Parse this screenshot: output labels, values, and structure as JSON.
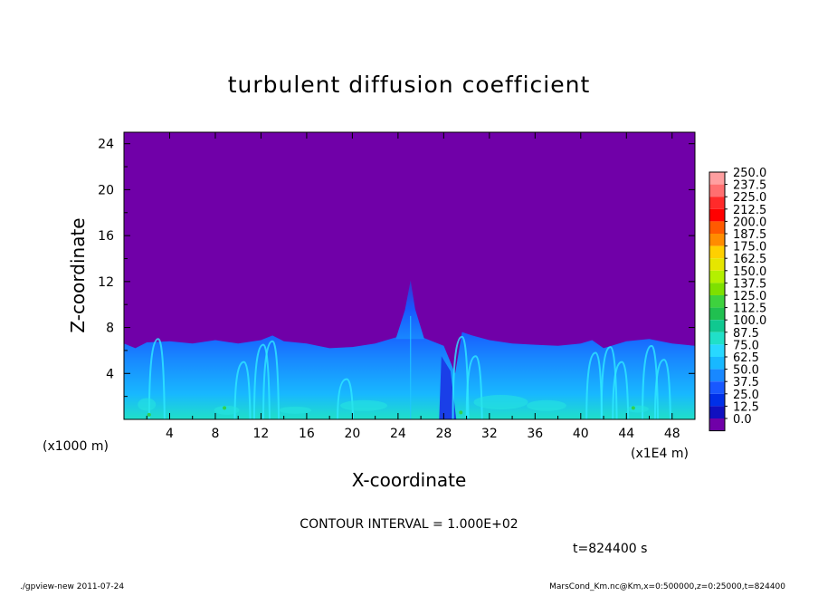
{
  "chart_data": {
    "type": "heatmap",
    "title": "turbulent diffusion coefficient",
    "xlabel": "X-coordinate",
    "ylabel": "Z-coordinate",
    "x_unit_left": "(x1000 m)",
    "x_unit_right": "(x1E4 m)",
    "xlim": [
      0,
      50
    ],
    "ylim": [
      0,
      25
    ],
    "x_ticks": [
      4,
      8,
      12,
      16,
      20,
      24,
      28,
      32,
      36,
      40,
      44,
      48
    ],
    "y_ticks": [
      4,
      8,
      12,
      16,
      20,
      24
    ],
    "colorbar_levels": [
      "250.0",
      "237.5",
      "225.0",
      "212.5",
      "200.0",
      "187.5",
      "175.0",
      "162.5",
      "150.0",
      "137.5",
      "125.0",
      "112.5",
      "100.0",
      "87.5",
      "75.0",
      "62.5",
      "50.0",
      "37.5",
      "25.0",
      "12.5",
      "0.0"
    ],
    "colorbar_colors": [
      "#ff9fa0",
      "#ff6f70",
      "#ff2a2a",
      "#ff0000",
      "#ff5a00",
      "#ff8c00",
      "#ffd000",
      "#e6e600",
      "#b4f000",
      "#7ee000",
      "#3ed23e",
      "#20c050",
      "#10c890",
      "#20e0c8",
      "#28d8ff",
      "#18b8ff",
      "#1888ff",
      "#1858ff",
      "#0030e8",
      "#1010c0",
      "#7000a8"
    ],
    "annotation": "CONTOUR INTERVAL = 1.000E+02",
    "time_label": "t=824400 s"
  },
  "footer": {
    "left": "./gpview-new   2011-07-24",
    "right": "MarsCond_Km.nc@Km,x=0:500000,z=0:25000,t=824400"
  },
  "colors": {
    "background_field": "#7000a8",
    "low_turbulence": "#1858ff",
    "mid_turbulence": "#18b8ff",
    "high_turbulence": "#28d8ff"
  }
}
